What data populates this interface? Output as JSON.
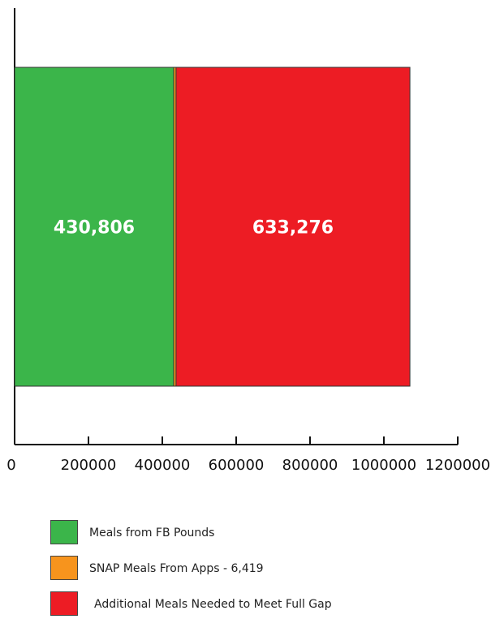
{
  "chart_data": {
    "type": "bar",
    "orientation": "horizontal",
    "stacked": true,
    "xlim": [
      0,
      1200000
    ],
    "ticks": [
      0,
      200000,
      400000,
      600000,
      800000,
      1000000,
      1200000
    ],
    "tick_labels": [
      "0",
      "200000",
      "400000",
      "600000",
      "800000",
      "1000000",
      "1200000"
    ],
    "series": [
      {
        "name": "Meals from FB Pounds",
        "value": 430806,
        "label": "430,806",
        "color": "#3bb54a"
      },
      {
        "name": "SNAP Meals From Apps - 6,419",
        "value": 6419,
        "label": "",
        "color": "#f7941d"
      },
      {
        "name": "Additional Meals Needed to Meet Full Gap",
        "value": 633276,
        "label": "633,276",
        "color": "#ed1c24"
      }
    ],
    "grid": false,
    "legend_position": "bottom"
  }
}
